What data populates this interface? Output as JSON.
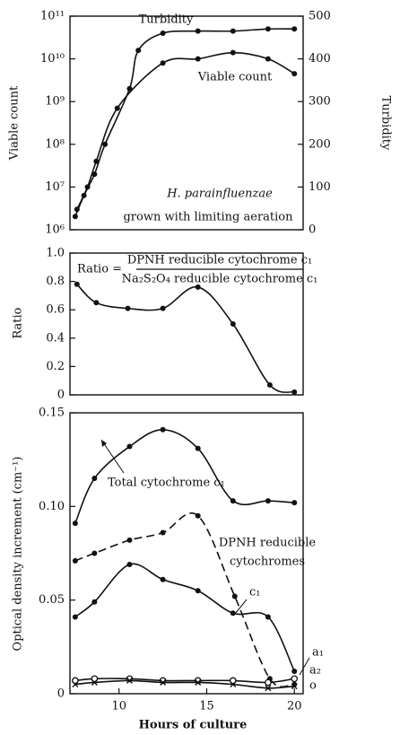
{
  "chart_data": [
    {
      "type": "line",
      "ylabel": "Viable count",
      "y2label": "Turbidity",
      "log_y": true,
      "xlim": [
        7.2,
        20.5
      ],
      "ylim": [
        1000000,
        100000000000
      ],
      "yticks": [
        {
          "value": 1000000,
          "label": "10⁶"
        },
        {
          "value": 10000000,
          "label": "10⁷"
        },
        {
          "value": 100000000,
          "label": "10⁸"
        },
        {
          "value": 1000000000,
          "label": "10⁹"
        },
        {
          "value": 10000000000,
          "label": "10¹⁰"
        },
        {
          "value": 100000000000,
          "label": "10¹¹"
        }
      ],
      "y2lim": [
        0,
        500
      ],
      "y2ticks": [
        0,
        100,
        200,
        300,
        400,
        500
      ],
      "annotations": [
        "H. parainfluenzae",
        "grown with limiting aeration"
      ],
      "series": [
        {
          "name": "Turbidity",
          "axis": "y2",
          "color": "#111111",
          "marker": "dot",
          "x": [
            7.5,
            8.0,
            8.6,
            9.2,
            10.6,
            11.1,
            12.5,
            14.5,
            16.5,
            18.5,
            20.0
          ],
          "values": [
            31,
            80,
            130,
            200,
            330,
            420,
            460,
            465,
            465,
            470,
            470
          ]
        },
        {
          "name": "Viable count",
          "color": "#111111",
          "marker": "dot",
          "x": [
            7.6,
            8.2,
            8.7,
            9.9,
            12.5,
            14.5,
            16.5,
            18.5,
            20.0
          ],
          "values": [
            3000000,
            10000000,
            40000000,
            700000000,
            8000000000,
            10000000000,
            14000000000,
            10000000000,
            4500000000
          ]
        }
      ]
    },
    {
      "type": "line",
      "ylabel": "Ratio",
      "xlim": [
        7.2,
        20.5
      ],
      "ylim": [
        0,
        1
      ],
      "yticks": [
        0,
        0.2,
        0.4,
        0.6,
        0.8,
        {
          "value": 1,
          "label": "1.0"
        }
      ],
      "annotations": [
        "Ratio =",
        "DPNH reducible cytochrome c₁",
        "Na₂S₂O₄ reducible cytochrome c₁"
      ],
      "series": [
        {
          "name": "Ratio",
          "color": "#111111",
          "marker": "dot",
          "x": [
            7.6,
            8.7,
            10.5,
            12.5,
            14.5,
            16.5,
            18.6,
            20.0
          ],
          "values": [
            0.78,
            0.65,
            0.61,
            0.61,
            0.76,
            0.5,
            0.07,
            0.02
          ]
        }
      ]
    },
    {
      "type": "line",
      "ylabel": "Optical density increment (cm⁻¹)",
      "xlabel": "Hours of culture",
      "xlim": [
        7.2,
        20.5
      ],
      "xticks": [
        10,
        15,
        20
      ],
      "ylim": [
        0,
        0.15
      ],
      "yticks": [
        0,
        0.05,
        {
          "value": 0.1,
          "label": "0.10"
        },
        0.15
      ],
      "annotations": [
        "DPNH reducible",
        "cytochromes"
      ],
      "series": [
        {
          "name": "Total cytochrome c₁",
          "color": "#111111",
          "marker": "dot",
          "x": [
            7.5,
            8.6,
            10.6,
            12.5,
            14.5,
            16.5,
            18.5,
            20.0
          ],
          "values": [
            0.091,
            0.115,
            0.132,
            0.141,
            0.131,
            0.103,
            0.103,
            0.102
          ]
        },
        {
          "name": "c₁",
          "color": "#111111",
          "marker": "dot",
          "dash": true,
          "x": [
            7.5,
            8.6,
            10.6,
            12.5,
            14.5,
            16.6,
            18.6,
            20.0
          ],
          "values": [
            0.071,
            0.075,
            0.082,
            0.086,
            0.095,
            0.052,
            0.008,
            0.005
          ]
        },
        {
          "name": "a₁",
          "color": "#111111",
          "marker": "dot",
          "x": [
            7.5,
            8.6,
            10.6,
            12.5,
            14.5,
            16.5,
            18.5,
            20.0
          ],
          "values": [
            0.041,
            0.049,
            0.069,
            0.061,
            0.055,
            0.043,
            0.041,
            0.012
          ]
        },
        {
          "name": "a₂",
          "color": "#111111",
          "marker": "circle",
          "x": [
            7.5,
            8.6,
            10.6,
            12.5,
            14.5,
            16.5,
            18.5,
            20.0
          ],
          "values": [
            0.007,
            0.008,
            0.008,
            0.007,
            0.007,
            0.007,
            0.006,
            0.008
          ]
        },
        {
          "name": "o",
          "color": "#111111",
          "marker": "x",
          "x": [
            7.5,
            8.6,
            10.6,
            12.5,
            14.5,
            16.5,
            18.5,
            20.0
          ],
          "values": [
            0.005,
            0.006,
            0.007,
            0.006,
            0.006,
            0.005,
            0.003,
            0.004
          ]
        }
      ]
    }
  ]
}
